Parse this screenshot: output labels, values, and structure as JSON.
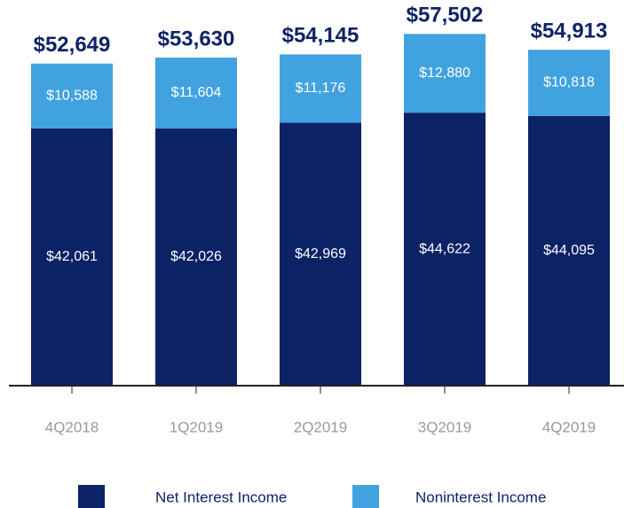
{
  "chart_data": {
    "type": "stacked_bar",
    "categories": [
      "4Q2018",
      "1Q2019",
      "2Q2019",
      "3Q2019",
      "4Q2019"
    ],
    "series": [
      {
        "name": "Net Interest Income",
        "color": "#0b2265",
        "values": [
          42061,
          42026,
          42969,
          44622,
          44095
        ],
        "value_labels": [
          "$42,061",
          "$42,026",
          "$42,969",
          "$44,622",
          "$44,095"
        ]
      },
      {
        "name": "Noninterest Income",
        "color": "#41a2e0",
        "values": [
          10588,
          11604,
          11176,
          12880,
          10818
        ],
        "value_labels": [
          "$10,588",
          "$11,604",
          "$11,176",
          "$12,880",
          "$10,818"
        ]
      }
    ],
    "totals": [
      52649,
      53630,
      54145,
      57502,
      54913
    ],
    "total_labels": [
      "$52,649",
      "$53,630",
      "$54,145",
      "$57,502",
      "$54,913"
    ],
    "ylim": [
      0,
      60000
    ]
  }
}
